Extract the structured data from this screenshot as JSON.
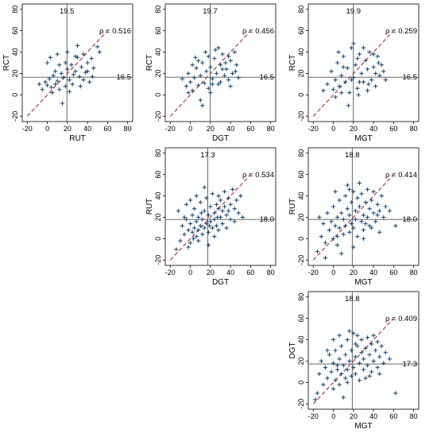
{
  "chart_data": [
    {
      "type": "scatter",
      "panel": "r1c1",
      "xlabel": "RUT",
      "ylabel": "RCT",
      "xticks": [
        -20,
        0,
        20,
        40,
        60,
        80
      ],
      "yticks": [
        -20,
        0,
        20,
        40,
        60,
        80
      ],
      "xlim": [
        -25,
        85
      ],
      "ylim": [
        -25,
        85
      ],
      "vline": 19.5,
      "vline_label": "19.5",
      "hline": 16.5,
      "hline_label": "16.5",
      "rho_label": "ρ = 0.516",
      "points": [
        [
          -2,
          12
        ],
        [
          0,
          9
        ],
        [
          2,
          15
        ],
        [
          4,
          7
        ],
        [
          6,
          18
        ],
        [
          8,
          10
        ],
        [
          10,
          13
        ],
        [
          12,
          5
        ],
        [
          14,
          20
        ],
        [
          16,
          16
        ],
        [
          18,
          8
        ],
        [
          20,
          24
        ],
        [
          22,
          14
        ],
        [
          24,
          28
        ],
        [
          26,
          19
        ],
        [
          28,
          22
        ],
        [
          30,
          35
        ],
        [
          32,
          17
        ],
        [
          34,
          26
        ],
        [
          36,
          38
        ],
        [
          38,
          21
        ],
        [
          40,
          30
        ],
        [
          42,
          12
        ],
        [
          44,
          34
        ],
        [
          46,
          25
        ],
        [
          50,
          45
        ],
        [
          52,
          40
        ],
        [
          -5,
          5
        ],
        [
          0,
          30
        ],
        [
          5,
          2
        ],
        [
          8,
          22
        ],
        [
          12,
          28
        ],
        [
          15,
          -8
        ],
        [
          18,
          30
        ],
        [
          22,
          3
        ],
        [
          25,
          10
        ],
        [
          28,
          36
        ],
        [
          33,
          8
        ],
        [
          36,
          14
        ],
        [
          40,
          22
        ],
        [
          45,
          17
        ],
        [
          3,
          35
        ],
        [
          10,
          38
        ],
        [
          20,
          40
        ],
        [
          30,
          46
        ],
        [
          -8,
          10
        ]
      ]
    },
    {
      "type": "scatter",
      "panel": "r1c2",
      "xlabel": "DGT",
      "ylabel": "RCT",
      "xticks": [
        -20,
        0,
        20,
        40,
        60,
        80
      ],
      "yticks": [
        -20,
        0,
        20,
        40,
        60,
        80
      ],
      "xlim": [
        -25,
        85
      ],
      "ylim": [
        -25,
        85
      ],
      "vline": 19.7,
      "vline_label": "19.7",
      "hline": 16.5,
      "hline_label": "16.5",
      "rho_label": "ρ = 0.456",
      "points": [
        [
          -4,
          8
        ],
        [
          -2,
          20
        ],
        [
          0,
          12
        ],
        [
          2,
          4
        ],
        [
          4,
          16
        ],
        [
          6,
          25
        ],
        [
          8,
          9
        ],
        [
          10,
          18
        ],
        [
          12,
          30
        ],
        [
          14,
          11
        ],
        [
          16,
          22
        ],
        [
          18,
          6
        ],
        [
          20,
          26
        ],
        [
          22,
          15
        ],
        [
          24,
          34
        ],
        [
          26,
          20
        ],
        [
          28,
          10
        ],
        [
          30,
          28
        ],
        [
          32,
          38
        ],
        [
          34,
          18
        ],
        [
          36,
          24
        ],
        [
          38,
          14
        ],
        [
          40,
          32
        ],
        [
          42,
          20
        ],
        [
          44,
          40
        ],
        [
          46,
          28
        ],
        [
          48,
          16
        ],
        [
          -8,
          15
        ],
        [
          5,
          35
        ],
        [
          10,
          -5
        ],
        [
          15,
          40
        ],
        [
          20,
          2
        ],
        [
          25,
          42
        ],
        [
          30,
          12
        ],
        [
          35,
          30
        ],
        [
          40,
          8
        ],
        [
          2,
          28
        ],
        [
          8,
          32
        ],
        [
          12,
          -10
        ],
        [
          18,
          36
        ],
        [
          28,
          44
        ],
        [
          38,
          36
        ],
        [
          45,
          22
        ],
        [
          -2,
          2
        ],
        [
          22,
          10
        ],
        [
          32,
          24
        ]
      ]
    },
    {
      "type": "scatter",
      "panel": "r1c3",
      "xlabel": "MGT",
      "ylabel": "RCT",
      "xticks": [
        -20,
        0,
        20,
        40,
        60,
        80
      ],
      "yticks": [
        -20,
        0,
        20,
        40,
        60,
        80
      ],
      "xlim": [
        -25,
        85
      ],
      "ylim": [
        -25,
        85
      ],
      "vline": 19.9,
      "vline_label": "19.9",
      "hline": 16.5,
      "hline_label": "16.5",
      "rho_label": "ρ = 0.259",
      "points": [
        [
          -6,
          10
        ],
        [
          -2,
          22
        ],
        [
          0,
          5
        ],
        [
          2,
          14
        ],
        [
          4,
          30
        ],
        [
          6,
          8
        ],
        [
          8,
          18
        ],
        [
          10,
          36
        ],
        [
          12,
          12
        ],
        [
          14,
          25
        ],
        [
          16,
          2
        ],
        [
          18,
          44
        ],
        [
          20,
          16
        ],
        [
          22,
          28
        ],
        [
          24,
          6
        ],
        [
          26,
          38
        ],
        [
          28,
          20
        ],
        [
          30,
          12
        ],
        [
          32,
          32
        ],
        [
          34,
          24
        ],
        [
          36,
          40
        ],
        [
          38,
          14
        ],
        [
          40,
          26
        ],
        [
          42,
          8
        ],
        [
          44,
          36
        ],
        [
          46,
          18
        ],
        [
          48,
          28
        ],
        [
          50,
          22
        ],
        [
          -10,
          4
        ],
        [
          5,
          40
        ],
        [
          15,
          -10
        ],
        [
          20,
          48
        ],
        [
          25,
          0
        ],
        [
          30,
          44
        ],
        [
          35,
          10
        ],
        [
          40,
          38
        ],
        [
          45,
          30
        ],
        [
          2,
          -2
        ],
        [
          10,
          26
        ],
        [
          18,
          14
        ],
        [
          26,
          12
        ],
        [
          34,
          4
        ],
        [
          42,
          20
        ],
        [
          52,
          14
        ],
        [
          8,
          2
        ],
        [
          24,
          34
        ]
      ]
    },
    {
      "type": "scatter",
      "panel": "r2c2",
      "xlabel": "DGT",
      "ylabel": "RUT",
      "xticks": [
        -20,
        0,
        20,
        40,
        60,
        80
      ],
      "yticks": [
        -20,
        0,
        20,
        40,
        60,
        80
      ],
      "xlim": [
        -25,
        85
      ],
      "ylim": [
        -25,
        85
      ],
      "vline": 17.3,
      "vline_label": "17.3",
      "hline": 18.0,
      "hline_label": "18.0",
      "rho_label": "ρ = 0.534",
      "points": [
        [
          -10,
          -2
        ],
        [
          -8,
          12
        ],
        [
          -6,
          4
        ],
        [
          -4,
          18
        ],
        [
          -2,
          8
        ],
        [
          0,
          14
        ],
        [
          0,
          -4
        ],
        [
          2,
          22
        ],
        [
          2,
          6
        ],
        [
          4,
          10
        ],
        [
          4,
          28
        ],
        [
          6,
          2
        ],
        [
          6,
          16
        ],
        [
          8,
          20
        ],
        [
          8,
          8
        ],
        [
          10,
          12
        ],
        [
          10,
          34
        ],
        [
          12,
          4
        ],
        [
          12,
          18
        ],
        [
          14,
          26
        ],
        [
          14,
          10
        ],
        [
          16,
          14
        ],
        [
          16,
          38
        ],
        [
          18,
          22
        ],
        [
          18,
          6
        ],
        [
          20,
          30
        ],
        [
          20,
          16
        ],
        [
          22,
          10
        ],
        [
          22,
          42
        ],
        [
          24,
          24
        ],
        [
          24,
          18
        ],
        [
          26,
          32
        ],
        [
          26,
          12
        ],
        [
          28,
          28
        ],
        [
          28,
          40
        ],
        [
          30,
          20
        ],
        [
          30,
          36
        ],
        [
          32,
          26
        ],
        [
          32,
          14
        ],
        [
          34,
          44
        ],
        [
          34,
          30
        ],
        [
          36,
          22
        ],
        [
          38,
          38
        ],
        [
          38,
          26
        ],
        [
          40,
          32
        ],
        [
          40,
          18
        ],
        [
          42,
          46
        ],
        [
          44,
          28
        ],
        [
          46,
          36
        ],
        [
          48,
          24
        ],
        [
          50,
          40
        ],
        [
          -12,
          26
        ],
        [
          -4,
          32
        ],
        [
          0,
          36
        ],
        [
          6,
          40
        ],
        [
          14,
          48
        ],
        [
          -14,
          -10
        ],
        [
          -2,
          -8
        ],
        [
          8,
          -2
        ],
        [
          28,
          8
        ],
        [
          36,
          10
        ],
        [
          44,
          16
        ],
        [
          52,
          20
        ],
        [
          18,
          -6
        ],
        [
          24,
          2
        ],
        [
          -6,
          20
        ],
        [
          3,
          0
        ],
        [
          11,
          24
        ],
        [
          19,
          12
        ],
        [
          27,
          20
        ]
      ]
    },
    {
      "type": "scatter",
      "panel": "r2c3",
      "xlabel": "MGT",
      "ylabel": "RUT",
      "xticks": [
        -20,
        0,
        20,
        40,
        60,
        80
      ],
      "yticks": [
        -20,
        0,
        20,
        40,
        60,
        80
      ],
      "xlim": [
        -25,
        85
      ],
      "ylim": [
        -25,
        85
      ],
      "vline": 18.8,
      "vline_label": "18.8",
      "hline": 18.0,
      "hline_label": "18.0",
      "rho_label": "ρ = 0.414",
      "points": [
        [
          -16,
          -12
        ],
        [
          -12,
          2
        ],
        [
          -10,
          14
        ],
        [
          -8,
          -4
        ],
        [
          -6,
          24
        ],
        [
          -4,
          8
        ],
        [
          -2,
          16
        ],
        [
          0,
          0
        ],
        [
          0,
          30
        ],
        [
          2,
          12
        ],
        [
          4,
          20
        ],
        [
          4,
          -6
        ],
        [
          6,
          36
        ],
        [
          6,
          10
        ],
        [
          8,
          24
        ],
        [
          10,
          4
        ],
        [
          10,
          18
        ],
        [
          12,
          40
        ],
        [
          12,
          12
        ],
        [
          14,
          28
        ],
        [
          16,
          6
        ],
        [
          16,
          22
        ],
        [
          18,
          34
        ],
        [
          18,
          14
        ],
        [
          20,
          44
        ],
        [
          20,
          10
        ],
        [
          22,
          26
        ],
        [
          22,
          18
        ],
        [
          24,
          38
        ],
        [
          24,
          2
        ],
        [
          26,
          30
        ],
        [
          28,
          16
        ],
        [
          28,
          42
        ],
        [
          30,
          22
        ],
        [
          30,
          8
        ],
        [
          32,
          34
        ],
        [
          34,
          20
        ],
        [
          34,
          46
        ],
        [
          36,
          28
        ],
        [
          36,
          12
        ],
        [
          38,
          36
        ],
        [
          40,
          24
        ],
        [
          40,
          44
        ],
        [
          42,
          16
        ],
        [
          44,
          32
        ],
        [
          46,
          26
        ],
        [
          48,
          40
        ],
        [
          50,
          20
        ],
        [
          52,
          30
        ],
        [
          56,
          26
        ],
        [
          62,
          12
        ],
        [
          -14,
          20
        ],
        [
          2,
          44
        ],
        [
          14,
          50
        ],
        [
          26,
          52
        ],
        [
          38,
          10
        ],
        [
          46,
          6
        ],
        [
          8,
          -14
        ],
        [
          20,
          -8
        ],
        [
          30,
          0
        ],
        [
          -8,
          -18
        ],
        [
          16,
          46
        ],
        [
          4,
          2
        ],
        [
          32,
          14
        ],
        [
          44,
          22
        ]
      ]
    },
    {
      "type": "scatter",
      "panel": "r3c3",
      "xlabel": "MGT",
      "ylabel": "DGT",
      "xticks": [
        -20,
        0,
        20,
        40,
        60,
        80
      ],
      "yticks": [
        -20,
        0,
        20,
        40,
        60,
        80
      ],
      "xlim": [
        -25,
        85
      ],
      "ylim": [
        -25,
        85
      ],
      "vline": 18.8,
      "vline_label": "18.8",
      "hline": 17.3,
      "hline_label": "17.3",
      "rho_label": "ρ = 0.409",
      "points": [
        [
          -16,
          -10
        ],
        [
          -14,
          8
        ],
        [
          -12,
          20
        ],
        [
          -10,
          -2
        ],
        [
          -8,
          14
        ],
        [
          -6,
          4
        ],
        [
          -4,
          26
        ],
        [
          -2,
          10
        ],
        [
          0,
          -6
        ],
        [
          0,
          18
        ],
        [
          2,
          2
        ],
        [
          2,
          30
        ],
        [
          4,
          12
        ],
        [
          6,
          22
        ],
        [
          6,
          -2
        ],
        [
          8,
          8
        ],
        [
          8,
          34
        ],
        [
          10,
          16
        ],
        [
          12,
          4
        ],
        [
          12,
          26
        ],
        [
          14,
          12
        ],
        [
          14,
          40
        ],
        [
          16,
          20
        ],
        [
          18,
          6
        ],
        [
          18,
          30
        ],
        [
          20,
          14
        ],
        [
          20,
          46
        ],
        [
          22,
          24
        ],
        [
          22,
          8
        ],
        [
          24,
          34
        ],
        [
          26,
          18
        ],
        [
          26,
          2
        ],
        [
          28,
          28
        ],
        [
          28,
          40
        ],
        [
          30,
          12
        ],
        [
          30,
          22
        ],
        [
          32,
          32
        ],
        [
          34,
          16
        ],
        [
          34,
          42
        ],
        [
          36,
          26
        ],
        [
          38,
          10
        ],
        [
          38,
          36
        ],
        [
          40,
          20
        ],
        [
          42,
          30
        ],
        [
          44,
          14
        ],
        [
          44,
          38
        ],
        [
          46,
          24
        ],
        [
          48,
          34
        ],
        [
          50,
          18
        ],
        [
          52,
          28
        ],
        [
          56,
          22
        ],
        [
          62,
          -10
        ],
        [
          -18,
          -16
        ],
        [
          0,
          40
        ],
        [
          10,
          -14
        ],
        [
          16,
          48
        ],
        [
          24,
          44
        ],
        [
          32,
          4
        ],
        [
          40,
          44
        ],
        [
          46,
          8
        ],
        [
          4,
          16
        ],
        [
          14,
          0
        ],
        [
          22,
          36
        ],
        [
          36,
          6
        ],
        [
          -6,
          30
        ],
        [
          6,
          44
        ]
      ]
    }
  ]
}
